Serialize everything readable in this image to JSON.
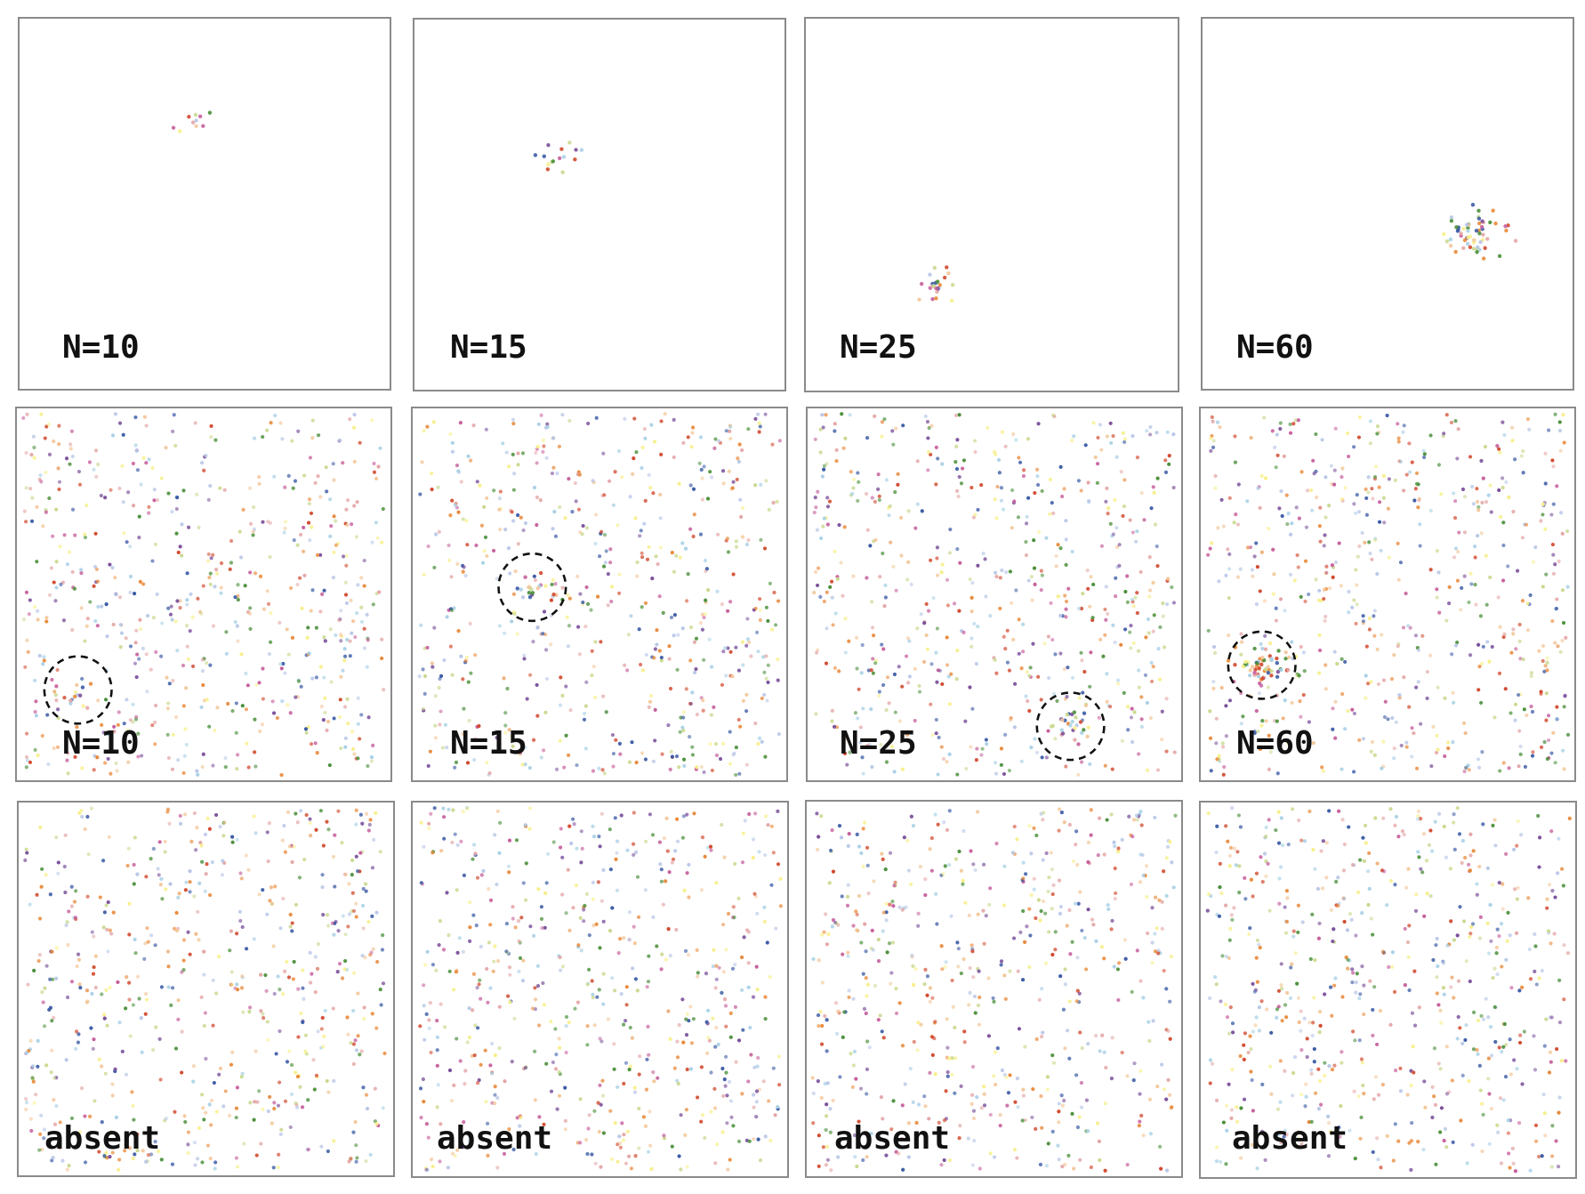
{
  "figure": {
    "palette": [
      "#3b5ba5",
      "#d1492e",
      "#e8893a",
      "#4a8f3a",
      "#f3c79a",
      "#b8c7e6",
      "#f7ef8a",
      "#c9d98f",
      "#c65f9c",
      "#7a4f9a",
      "#e4a6a6",
      "#a8d0e6"
    ],
    "rows": [
      {
        "kind": "cluster-only",
        "panels": [
          {
            "label": "N=10",
            "n": 10
          },
          {
            "label": "N=15",
            "n": 15
          },
          {
            "label": "N=25",
            "n": 25
          },
          {
            "label": "N=60",
            "n": 60
          }
        ]
      },
      {
        "kind": "cluster-in-noise",
        "panels": [
          {
            "label": "N=10",
            "n": 10
          },
          {
            "label": "N=15",
            "n": 15
          },
          {
            "label": "N=25",
            "n": 25
          },
          {
            "label": "N=60",
            "n": 60
          }
        ]
      },
      {
        "kind": "noise-only",
        "panels": [
          {
            "label": "absent"
          },
          {
            "label": "absent"
          },
          {
            "label": "absent"
          },
          {
            "label": "absent"
          }
        ]
      }
    ]
  }
}
